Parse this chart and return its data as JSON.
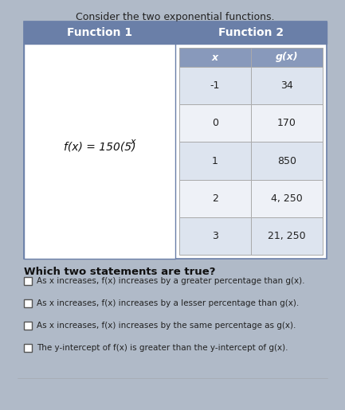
{
  "title": "Consider the two exponential functions.",
  "header_left": "Function 1",
  "header_right": "Function 2",
  "function1_label": "f(z) = 150(5)⁺",
  "function1_text": "f(x) = 150(5)^x",
  "col1_header": "x",
  "col2_header": "g(x)",
  "table_data": [
    [
      "-1",
      "34"
    ],
    [
      "0",
      "170"
    ],
    [
      "1",
      "850"
    ],
    [
      "2",
      "4, 250"
    ],
    [
      "3",
      "21, 250"
    ]
  ],
  "question": "Which two statements are true?",
  "options": [
    "As x increases, f(x) increases by a greater percentage than g(x).",
    "As x increases, f(x) increases by a lesser percentage than g(x).",
    "As x increases, f(x) increases by the same percentage as g(x).",
    "The y-intercept of f(x) is greater than the y-intercept of g(x)."
  ],
  "header_bg": "#6a7fa8",
  "header_text_color": "#ffffff",
  "table_header_bg": "#8899bb",
  "table_row_bg1": "#dde4ef",
  "table_row_bg2": "#eef1f7",
  "outer_border_color": "#6a7fa8",
  "title_color": "#222222",
  "body_bg": "#c8cfd8",
  "page_bg": "#b0bac8"
}
